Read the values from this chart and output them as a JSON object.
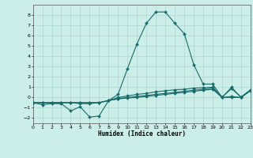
{
  "xlabel": "Humidex (Indice chaleur)",
  "xlim": [
    0,
    23
  ],
  "ylim": [
    -2.5,
    9.0
  ],
  "yticks": [
    -2,
    -1,
    0,
    1,
    2,
    3,
    4,
    5,
    6,
    7,
    8
  ],
  "xticks": [
    0,
    1,
    2,
    3,
    4,
    5,
    6,
    7,
    8,
    9,
    10,
    11,
    12,
    13,
    14,
    15,
    16,
    17,
    18,
    19,
    20,
    21,
    22,
    23
  ],
  "bg_color": "#cceee8",
  "grid_color": "#aad8d0",
  "line_color": "#1a6b6b",
  "series": [
    {
      "x": [
        0,
        1,
        2,
        3,
        4,
        5,
        6,
        7,
        8,
        9,
        10,
        11,
        12,
        13,
        14,
        15,
        16,
        17,
        18,
        19,
        20,
        21,
        22,
        23
      ],
      "y": [
        -0.5,
        -0.7,
        -0.6,
        -0.6,
        -1.3,
        -0.9,
        -1.9,
        -1.8,
        -0.3,
        0.3,
        2.8,
        5.2,
        7.2,
        8.3,
        8.3,
        7.2,
        6.2,
        3.2,
        1.3,
        1.3,
        0.0,
        1.0,
        0.0,
        0.7
      ]
    },
    {
      "x": [
        0,
        1,
        2,
        3,
        4,
        5,
        6,
        7,
        8,
        9,
        10,
        11,
        12,
        13,
        14,
        15,
        16,
        17,
        18,
        19,
        20,
        21,
        22,
        23
      ],
      "y": [
        -0.5,
        -0.5,
        -0.5,
        -0.5,
        -0.5,
        -0.6,
        -0.6,
        -0.5,
        -0.3,
        0.0,
        0.15,
        0.3,
        0.4,
        0.55,
        0.65,
        0.75,
        0.8,
        0.9,
        0.95,
        1.0,
        0.05,
        0.85,
        0.05,
        0.75
      ]
    },
    {
      "x": [
        0,
        1,
        2,
        3,
        4,
        5,
        6,
        7,
        8,
        9,
        10,
        11,
        12,
        13,
        14,
        15,
        16,
        17,
        18,
        19,
        20,
        21,
        22,
        23
      ],
      "y": [
        -0.5,
        -0.5,
        -0.5,
        -0.5,
        -0.5,
        -0.5,
        -0.5,
        -0.5,
        -0.3,
        -0.1,
        0.0,
        0.1,
        0.2,
        0.3,
        0.4,
        0.5,
        0.6,
        0.7,
        0.8,
        0.9,
        0.0,
        0.1,
        0.0,
        0.7
      ]
    },
    {
      "x": [
        0,
        1,
        2,
        3,
        4,
        5,
        6,
        7,
        8,
        9,
        10,
        11,
        12,
        13,
        14,
        15,
        16,
        17,
        18,
        19,
        20,
        21,
        22,
        23
      ],
      "y": [
        -0.5,
        -0.5,
        -0.5,
        -0.5,
        -0.5,
        -0.5,
        -0.5,
        -0.5,
        -0.3,
        -0.15,
        -0.05,
        0.0,
        0.1,
        0.2,
        0.3,
        0.4,
        0.5,
        0.6,
        0.7,
        0.8,
        0.0,
        0.0,
        0.0,
        0.65
      ]
    }
  ]
}
